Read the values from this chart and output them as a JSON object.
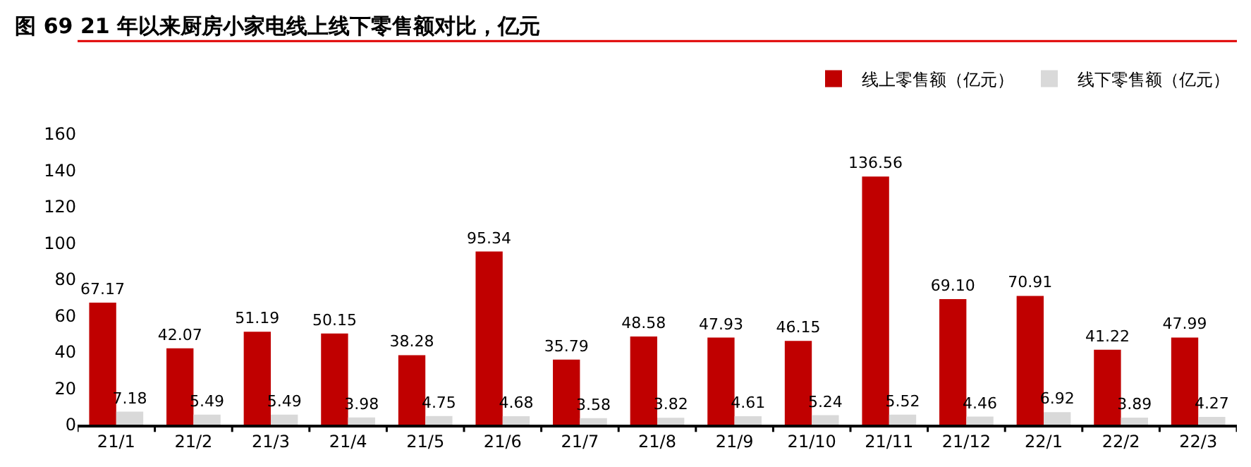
{
  "chart_data": {
    "type": "bar",
    "title": "图 69 21 年以来厨房小家电线上线下零售额对比，亿元",
    "categories": [
      "21/1",
      "21/2",
      "21/3",
      "21/4",
      "21/5",
      "21/6",
      "21/7",
      "21/8",
      "21/9",
      "21/10",
      "21/11",
      "21/12",
      "22/1",
      "22/2",
      "22/3"
    ],
    "series": [
      {
        "name": "线上零售额（亿元）",
        "color": "#c00000",
        "values": [
          67.17,
          42.07,
          51.19,
          50.15,
          38.28,
          95.34,
          35.79,
          48.58,
          47.93,
          46.15,
          136.56,
          69.1,
          70.91,
          41.22,
          47.99
        ],
        "value_labels": [
          "67.17",
          "42.07",
          "51.19",
          "50.15",
          "38.28",
          "95.34",
          "35.79",
          "48.58",
          "47.93",
          "46.15",
          "136.56",
          "69.10",
          "70.91",
          "41.22",
          "47.99"
        ]
      },
      {
        "name": "线下零售额（亿元）",
        "color": "#d9d9d9",
        "values": [
          7.18,
          5.49,
          5.49,
          3.98,
          4.75,
          4.68,
          3.58,
          3.82,
          4.61,
          5.24,
          5.52,
          4.46,
          6.92,
          3.89,
          4.27
        ],
        "value_labels": [
          "7.18",
          "5.49",
          "5.49",
          "3.98",
          "4.75",
          "4.68",
          "3.58",
          "3.82",
          "4.61",
          "5.24",
          "5.52",
          "4.46",
          "6.92",
          "3.89",
          "4.27"
        ]
      }
    ],
    "ylim": [
      0,
      160
    ],
    "yticks": [
      0,
      20,
      40,
      60,
      80,
      100,
      120,
      140,
      160
    ],
    "legend": "top right"
  }
}
